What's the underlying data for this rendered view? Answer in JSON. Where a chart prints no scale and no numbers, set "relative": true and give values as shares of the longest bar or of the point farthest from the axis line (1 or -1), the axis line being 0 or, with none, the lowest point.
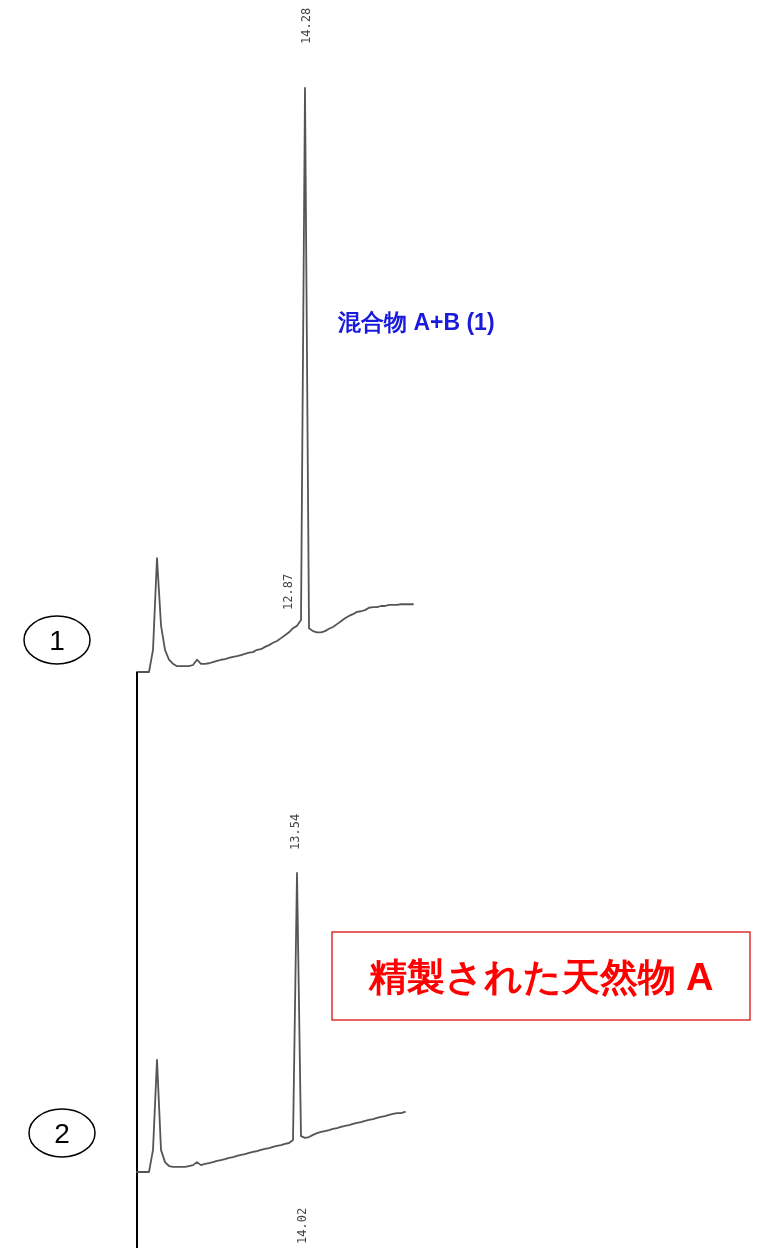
{
  "chart_data": [
    {
      "type": "line",
      "relative": true,
      "categories": [
        null,
        null,
        null,
        null,
        null,
        null,
        null,
        null,
        null,
        null,
        null,
        null,
        null,
        null,
        null,
        null,
        null,
        null,
        null,
        null,
        null,
        null,
        null,
        null,
        null,
        null,
        null,
        null,
        null,
        null,
        null,
        null,
        null,
        null,
        null,
        null,
        null,
        null,
        null,
        null,
        null,
        null,
        null,
        null,
        null,
        null,
        null,
        null,
        null,
        null,
        null,
        null,
        null,
        null,
        null,
        null,
        null,
        null,
        null,
        null,
        null,
        null,
        null,
        null,
        null,
        null,
        null,
        null,
        null,
        null
      ],
      "series": [
        {
          "color": "#555555",
          "values": [
            0,
            0,
            0,
            0,
            0.038,
            0.195,
            0.08,
            0.038,
            0.021,
            0.014,
            0.01,
            0.01,
            0.01,
            0.01,
            0.012,
            0.021,
            0.014,
            0.014,
            0.015,
            0.017,
            0.019,
            0.021,
            0.022,
            0.024,
            0.026,
            0.027,
            0.029,
            0.031,
            0.033,
            0.034,
            0.038,
            0.039,
            0.043,
            0.046,
            0.05,
            0.053,
            0.058,
            0.063,
            0.068,
            0.075,
            0.079,
            0.089,
            1,
            0.075,
            0.07,
            0.068,
            0.068,
            0.07,
            0.074,
            0.077,
            0.082,
            0.087,
            0.092,
            0.096,
            0.099,
            0.103,
            0.104,
            0.106,
            0.11,
            0.111,
            0.111,
            0.113,
            0.113,
            0.115,
            0.115,
            0.115,
            0.116,
            0.116,
            0.116,
            0.116
          ]
        }
      ],
      "annotations": [
        "14.28",
        "12.87",
        "混合物 A+B (1)",
        "1"
      ]
    },
    {
      "type": "line",
      "relative": true,
      "categories": [
        null,
        null,
        null,
        null,
        null,
        null,
        null,
        null,
        null,
        null,
        null,
        null,
        null,
        null,
        null,
        null,
        null,
        null,
        null,
        null,
        null,
        null,
        null,
        null,
        null,
        null,
        null,
        null,
        null,
        null,
        null,
        null,
        null,
        null,
        null,
        null,
        null,
        null,
        null,
        null,
        null,
        null,
        null,
        null,
        null,
        null,
        null,
        null,
        null,
        null,
        null,
        null,
        null,
        null,
        null,
        null,
        null,
        null,
        null,
        null,
        null,
        null,
        null,
        null,
        null,
        null,
        null,
        null
      ],
      "series": [
        {
          "color": "#555555",
          "values": [
            0,
            0,
            0,
            0,
            0.074,
            0.375,
            0.074,
            0.033,
            0.02,
            0.017,
            0.017,
            0.017,
            0.017,
            0.02,
            0.023,
            0.033,
            0.023,
            0.027,
            0.03,
            0.033,
            0.037,
            0.04,
            0.043,
            0.047,
            0.05,
            0.054,
            0.057,
            0.06,
            0.064,
            0.067,
            0.07,
            0.074,
            0.077,
            0.08,
            0.084,
            0.087,
            0.09,
            0.094,
            0.097,
            0.107,
            1,
            0.12,
            0.114,
            0.117,
            0.124,
            0.13,
            0.134,
            0.137,
            0.14,
            0.144,
            0.147,
            0.151,
            0.154,
            0.157,
            0.161,
            0.164,
            0.167,
            0.171,
            0.174,
            0.177,
            0.181,
            0.184,
            0.187,
            0.191,
            0.194,
            0.197,
            0.197,
            0.201
          ]
        }
      ],
      "annotations": [
        "13.54",
        "14.02",
        "精製された天然物 A",
        "2"
      ]
    }
  ]
}
